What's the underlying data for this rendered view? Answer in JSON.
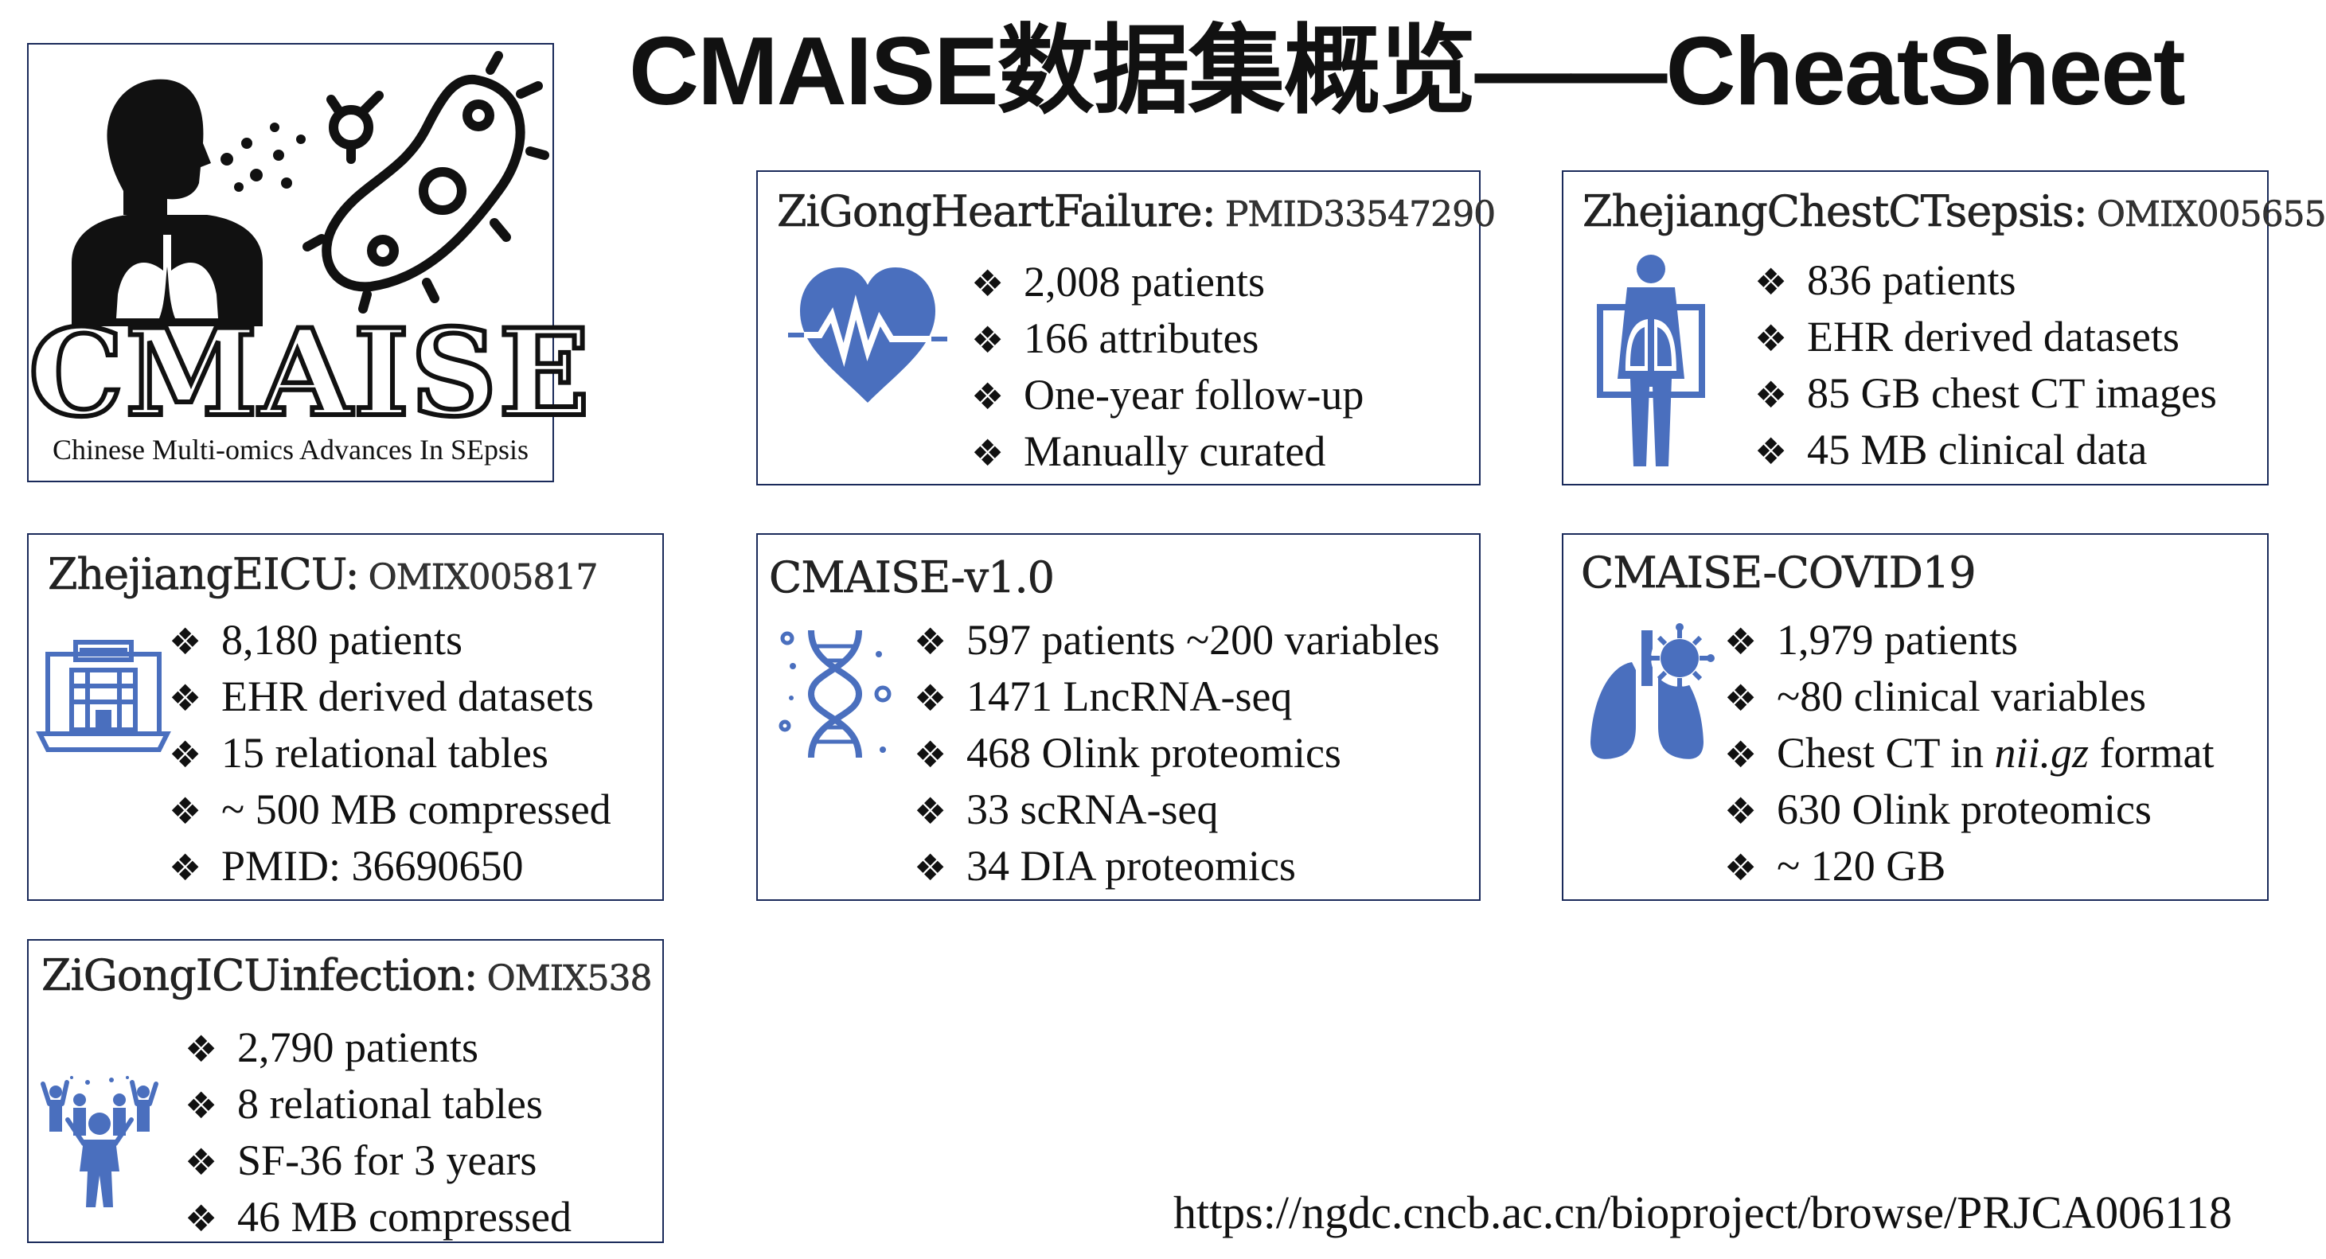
{
  "title": "CMAISE数据集概览——CheatSheet",
  "logo": {
    "name": "CMAISE",
    "tagline": "Chinese Multi-omics Advances In SEpsis"
  },
  "cards": {
    "zigong_hf": {
      "name": "ZiGongHeartFailure:",
      "id": "PMID33547290",
      "items": [
        "2,008 patients",
        "166 attributes",
        "One-year follow-up",
        "Manually curated"
      ]
    },
    "zhejiang_ct": {
      "name": "ZhejiangChestCTsepsis:",
      "id": "OMIX005655",
      "items": [
        "836 patients",
        "EHR derived datasets",
        "85 GB chest CT images",
        "45 MB clinical data"
      ]
    },
    "zhejiang_eicu": {
      "name": "ZhejiangEICU:",
      "id": "OMIX005817",
      "items": [
        "8,180 patients",
        "EHR derived datasets",
        "15 relational tables",
        "~ 500 MB compressed",
        "PMID: 36690650"
      ]
    },
    "cmaise_v1": {
      "name": "CMAISE-v1.0",
      "items": [
        "597 patients ~200 variables",
        "1471 LncRNA-seq",
        "468 Olink proteomics",
        "33 scRNA-seq",
        "34 DIA proteomics"
      ]
    },
    "cmaise_covid": {
      "name": "CMAISE-COVID19",
      "items": [
        "1,979 patients",
        "~80 clinical variables",
        "630 Olink proteomics",
        "~ 120 GB"
      ],
      "ct_line": {
        "pre": "Chest CT in ",
        "em": "nii.gz",
        "post": " format"
      }
    },
    "zigong_icu": {
      "name": "ZiGongICUinfection:",
      "id": "OMIX538",
      "items": [
        "2,790 patients",
        "8 relational tables",
        "SF-36 for 3 years",
        "46 MB compressed"
      ]
    }
  },
  "bullet": "❖",
  "url": "https://ngdc.cncb.ac.cn/bioproject/browse/PRJCA006118",
  "icons": [
    "patient-lungs-icon",
    "bacteria-icon",
    "heart-pulse-icon",
    "body-scan-icon",
    "hospital-computer-icon",
    "dna-icon",
    "lungs-virus-icon",
    "crowd-icon"
  ],
  "colors": {
    "icon_blue": "#4a6fbe",
    "border": "#1a2a5a"
  }
}
